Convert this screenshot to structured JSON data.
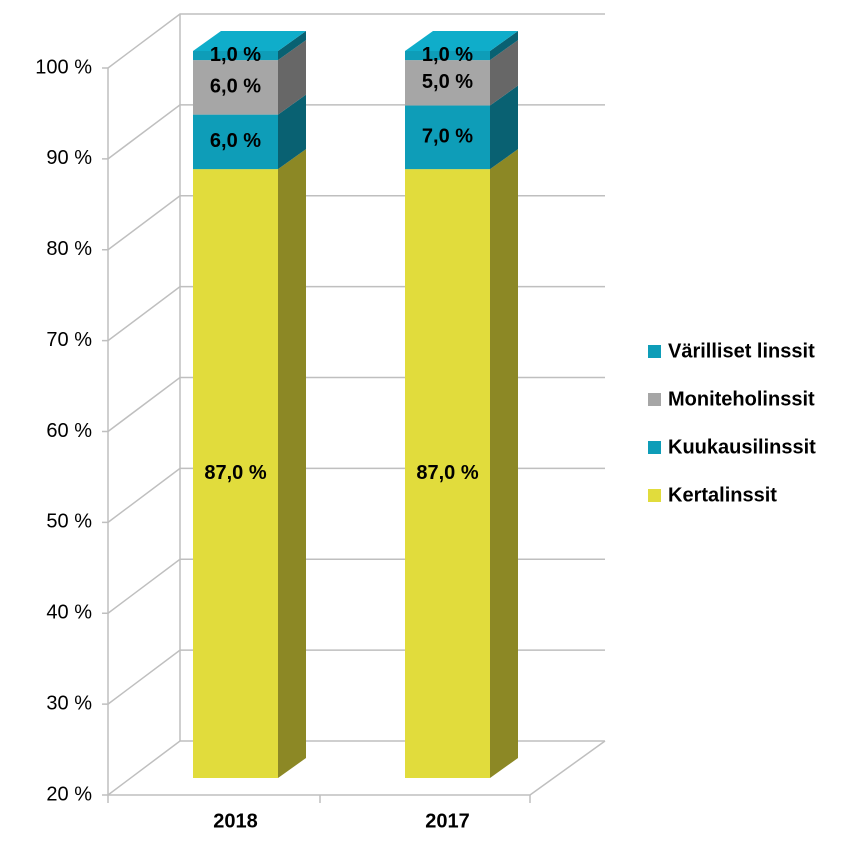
{
  "chart_data": {
    "type": "bar3d_stacked",
    "categories": [
      "2018",
      "2017"
    ],
    "series": [
      {
        "name": "Kertalinssit",
        "color": "#e1dc3c",
        "values": [
          87,
          87
        ],
        "value_labels": [
          "87,0 %",
          "87,0 %"
        ]
      },
      {
        "name": "Kuukausilinssit",
        "color": "#0e9db8",
        "values": [
          6,
          7
        ],
        "value_labels": [
          "6,0 %",
          "7,0 %"
        ]
      },
      {
        "name": "Moniteholinssit",
        "color": "#a6a6a6",
        "values": [
          6,
          5
        ],
        "value_labels": [
          "6,0 %",
          "5,0 %"
        ]
      },
      {
        "name": "Värilliset linssit",
        "color": "#0e9db8",
        "values": [
          1,
          1
        ],
        "value_labels": [
          "1,0 %",
          "1,0 %"
        ]
      }
    ],
    "ylim": [
      20,
      100
    ],
    "yticks": [
      {
        "value": 20,
        "label": "20 %"
      },
      {
        "value": 30,
        "label": "30 %"
      },
      {
        "value": 40,
        "label": "40 %"
      },
      {
        "value": 50,
        "label": "50 %"
      },
      {
        "value": 60,
        "label": "60 %"
      },
      {
        "value": 70,
        "label": "70 %"
      },
      {
        "value": 80,
        "label": "80 %"
      },
      {
        "value": 90,
        "label": "90 %"
      },
      {
        "value": 100,
        "label": "100 %"
      }
    ],
    "grid": true,
    "legend": "right"
  }
}
